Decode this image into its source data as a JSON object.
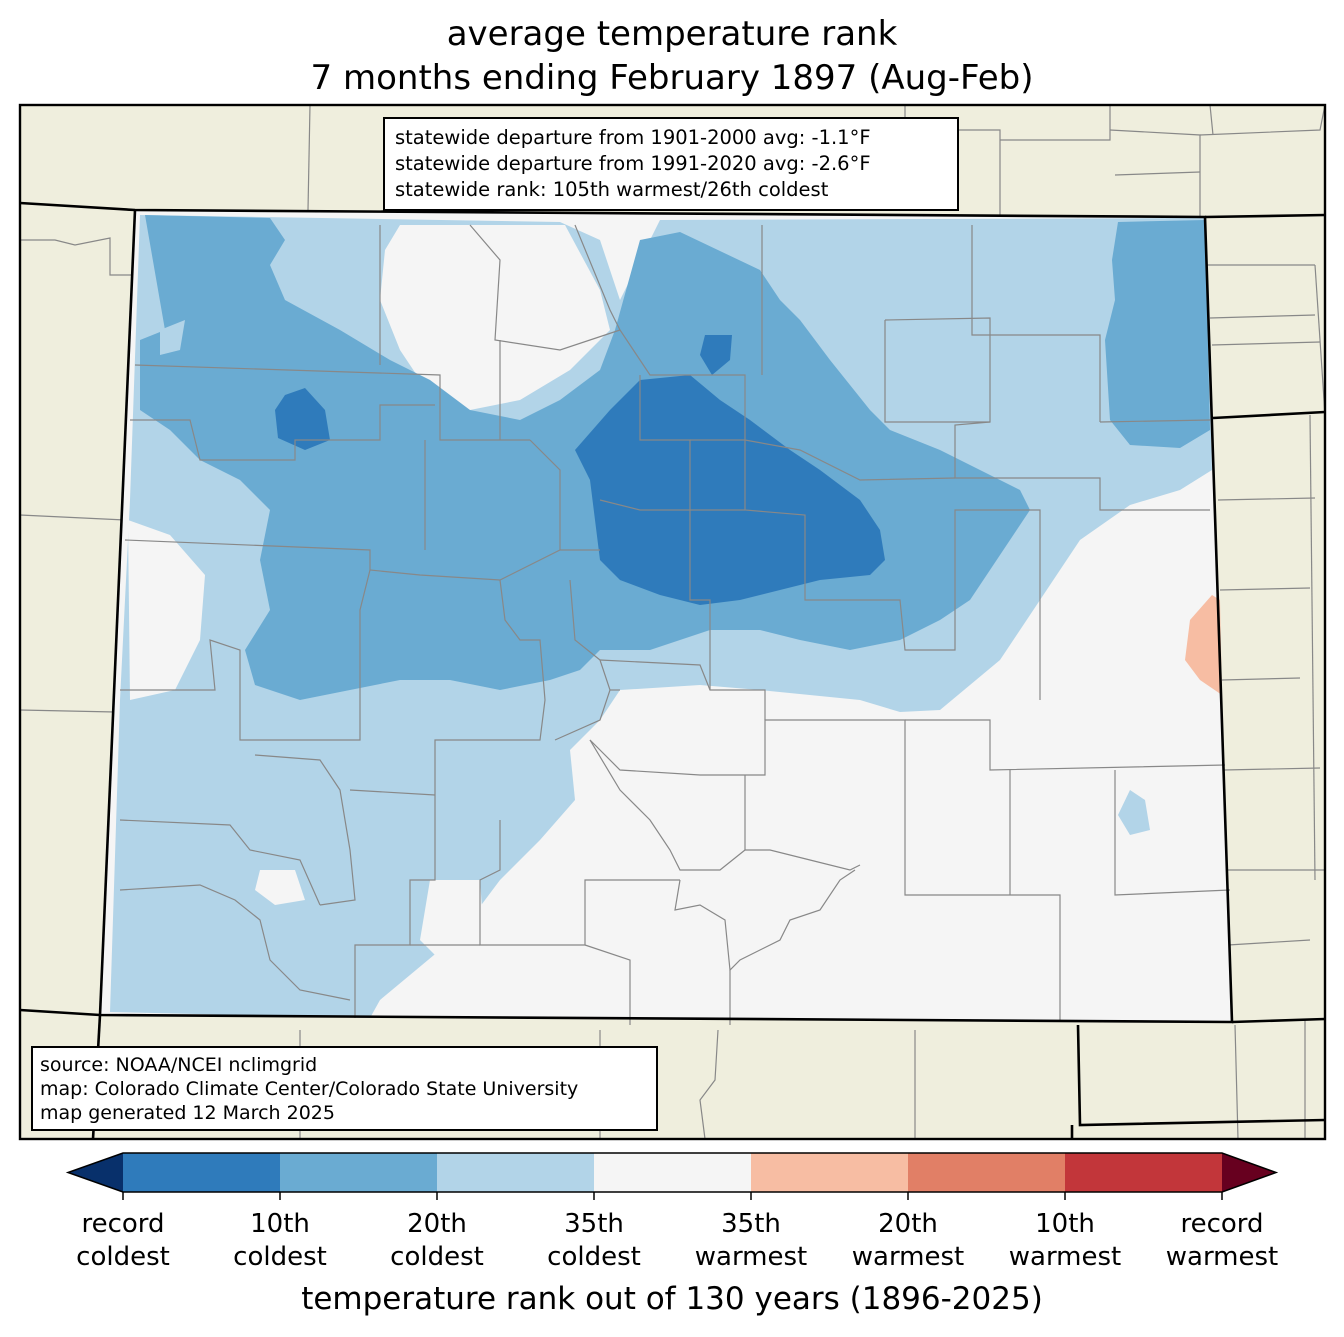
{
  "title": {
    "line1": "average temperature rank",
    "line2": "7 months ending February 1897 (Aug-Feb)"
  },
  "stats": {
    "line1": "statewide departure from 1901-2000 avg: -1.1°F",
    "line2": "statewide departure from 1991-2020 avg: -2.6°F",
    "line3": "statewide rank: 105th warmest/26th coldest"
  },
  "source": {
    "line1": "source: NOAA/NCEI nclimgrid",
    "line2": "map: Colorado Climate Center/Colorado State University",
    "line3": "map generated 12 March 2025"
  },
  "colorbar": {
    "title": "temperature rank out of 130 years (1896-2025)",
    "categories": [
      {
        "line1": "record",
        "line2": "coldest"
      },
      {
        "line1": "10th",
        "line2": "coldest"
      },
      {
        "line1": "20th",
        "line2": "coldest"
      },
      {
        "line1": "35th",
        "line2": "coldest"
      },
      {
        "line1": "35th",
        "line2": "warmest"
      },
      {
        "line1": "20th",
        "line2": "warmest"
      },
      {
        "line1": "10th",
        "line2": "warmest"
      },
      {
        "line1": "record",
        "line2": "warmest"
      }
    ],
    "colors": [
      "#08306b",
      "#2f7bbb",
      "#6aabd2",
      "#b2d4e8",
      "#f5f5f5",
      "#f7bda3",
      "#e17f66",
      "#c2363a",
      "#67001f"
    ]
  },
  "colors": {
    "land_background": "#efeedd",
    "state_border": "#000000",
    "county_border": "#888888"
  }
}
